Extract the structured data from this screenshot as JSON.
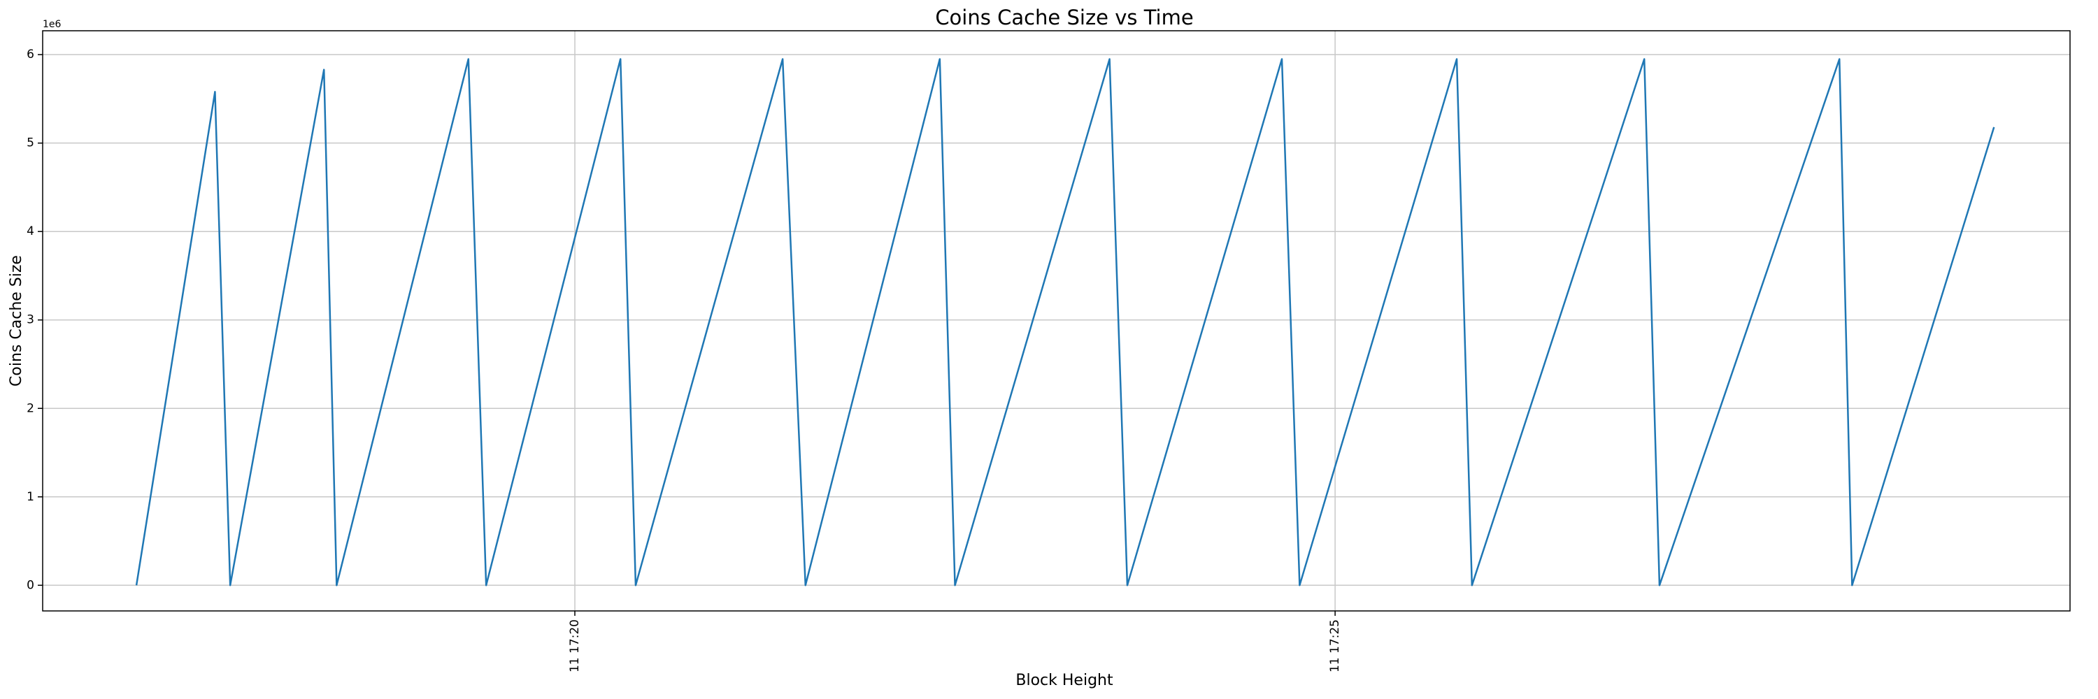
{
  "chart_data": {
    "type": "line",
    "title": "Coins Cache Size vs Time",
    "x_label": "Block Height",
    "y_label": "Coins Cache Size",
    "y_offset_label": "1e6",
    "grid": true,
    "x": [
      "11 17:17:07",
      "11 17:17:38",
      "11 17:17:44",
      "11 17:18:21",
      "11 17:18:26",
      "11 17:19:18",
      "11 17:19:25",
      "11 17:20:18",
      "11 17:20:24",
      "11 17:21:22",
      "11 17:21:31",
      "11 17:22:24",
      "11 17:22:30",
      "11 17:23:31",
      "11 17:23:38",
      "11 17:24:39",
      "11 17:24:46",
      "11 17:25:48",
      "11 17:25:54",
      "11 17:27:02",
      "11 17:27:08",
      "11 17:28:19",
      "11 17:28:24",
      "11 17:29:20"
    ],
    "series": [
      {
        "name": "Coins Cache Size",
        "color": "#1f77b4",
        "values": [
          0,
          5.58,
          0,
          5.83,
          0,
          5.95,
          0,
          5.95,
          0,
          5.95,
          0,
          5.95,
          0,
          5.95,
          0,
          5.95,
          0,
          5.95,
          0,
          5.95,
          0,
          5.95,
          0,
          5.18
        ]
      }
    ],
    "xlim": [
      "11 17:16:30",
      "11 17:29:50"
    ],
    "xticks": [
      {
        "value": "11 17:20:00",
        "label": "11 17:20"
      },
      {
        "value": "11 17:25:00",
        "label": "11 17:25"
      }
    ],
    "ylim": [
      -0.29,
      6.27
    ],
    "yticks": [
      0,
      1,
      2,
      3,
      4,
      5,
      6
    ]
  }
}
